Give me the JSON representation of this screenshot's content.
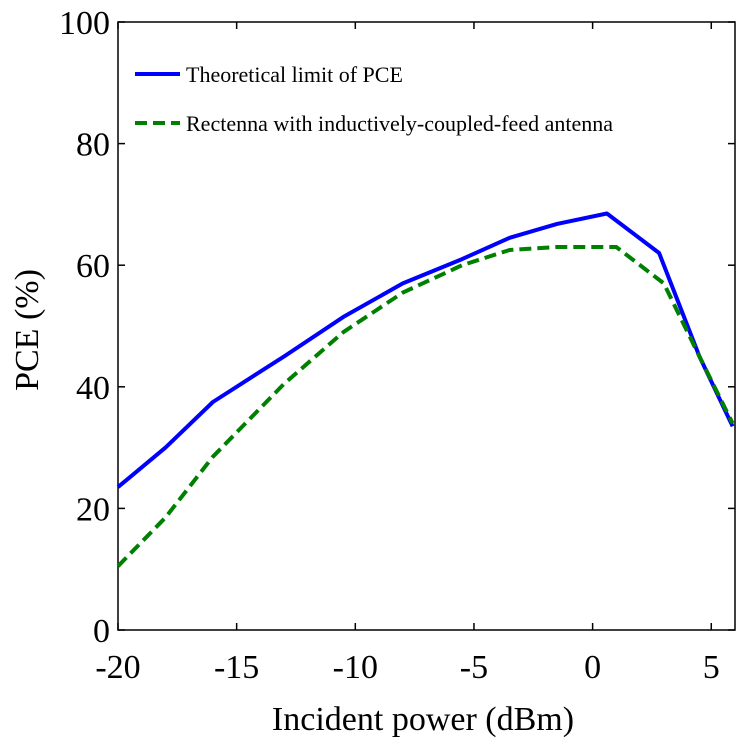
{
  "chart_data": {
    "type": "line",
    "title": "",
    "xlabel": "Incident power (dBm)",
    "ylabel": "PCE (%)",
    "xlim": [
      -20,
      6
    ],
    "ylim": [
      0,
      100
    ],
    "xticks": [
      -20,
      -15,
      -10,
      -5,
      0,
      5
    ],
    "yticks": [
      0,
      20,
      40,
      60,
      80,
      100
    ],
    "grid": false,
    "legend_position": "top-left",
    "series": [
      {
        "name": "Theoretical limit of PCE",
        "color": "#0000ff",
        "dash": "solid",
        "x": [
          -20,
          -18,
          -16,
          -13,
          -10.5,
          -8,
          -5.5,
          -3.5,
          -1.5,
          0.6,
          2.8,
          4.5,
          5.9
        ],
        "y": [
          23.5,
          30,
          37.5,
          45,
          51.5,
          57,
          61,
          64.5,
          66.8,
          68.5,
          62,
          45,
          33.5
        ]
      },
      {
        "name": "Rectenna with inductively-coupled-feed antenna",
        "color": "#008000",
        "dash": "dashed",
        "x": [
          -20,
          -18,
          -16,
          -13,
          -10.5,
          -8,
          -5.5,
          -3.5,
          -1.5,
          1,
          3,
          4.5,
          5.9
        ],
        "y": [
          10.5,
          18.5,
          28.5,
          40.5,
          49,
          55.5,
          60,
          62.5,
          63,
          63,
          57,
          45,
          34
        ]
      }
    ]
  }
}
